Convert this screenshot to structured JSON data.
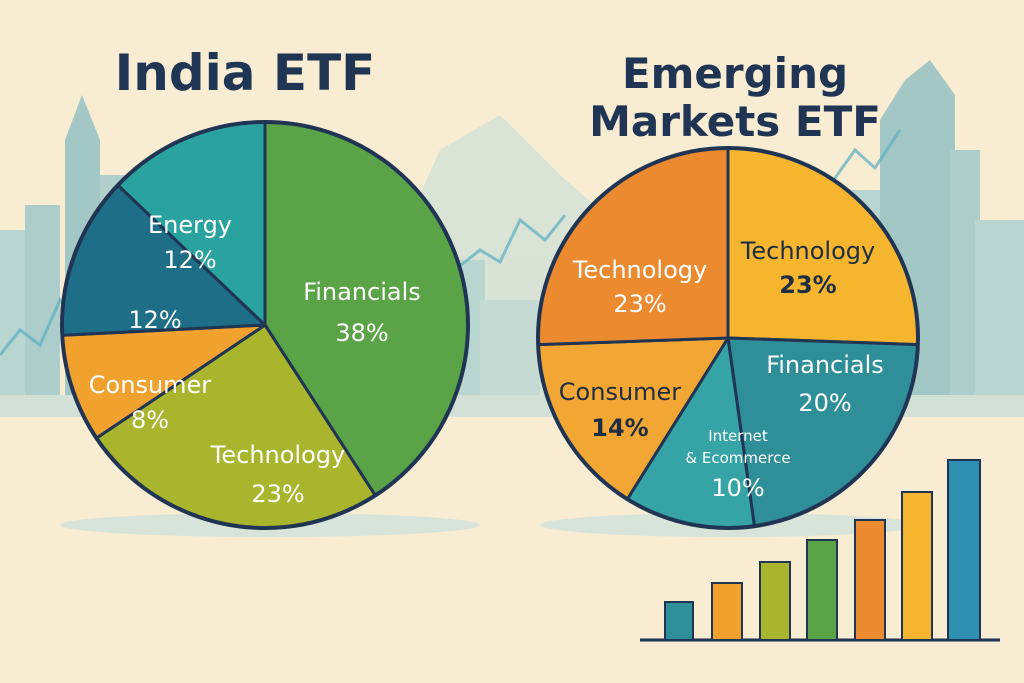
{
  "titles": {
    "left": "India ETF",
    "right": "Emerging Markets ETF"
  },
  "chart_data": [
    {
      "type": "pie",
      "title": "India ETF",
      "slices": [
        {
          "label": "Financials",
          "value": 38,
          "value_label": "38%",
          "color": "#5aa346"
        },
        {
          "label": "Technology",
          "value": 23,
          "value_label": "23%",
          "color": "#a8b52d"
        },
        {
          "label": "Consumer",
          "value": 8,
          "value_label": "8%",
          "color": "#f0a12e"
        },
        {
          "label": "",
          "value": 12,
          "value_label": "12%",
          "color": "#1f6e88"
        },
        {
          "label": "Energy",
          "value": 12,
          "value_label": "12%",
          "color": "#2aa3a0"
        }
      ]
    },
    {
      "type": "pie",
      "title": "Emerging Markets ETF",
      "slices": [
        {
          "label": "Technology",
          "value": 23,
          "value_label": "23%",
          "color": "#f6b52f"
        },
        {
          "label": "Financials",
          "value": 20,
          "value_label": "20%",
          "color": "#2f8f99"
        },
        {
          "label": "Internet & Ecommerce",
          "value": 10,
          "value_label": "10%",
          "color": "#36a3a6"
        },
        {
          "label": "Consumer",
          "value": 14,
          "value_label": "14%",
          "color": "#f2a735"
        },
        {
          "label": "Technology",
          "value": 23,
          "value_label": "23%",
          "color": "#ec8a2f"
        }
      ]
    }
  ],
  "colors": {
    "background": "#f8ecd3",
    "outline": "#1f3553",
    "skyline": "#86c3cf"
  }
}
